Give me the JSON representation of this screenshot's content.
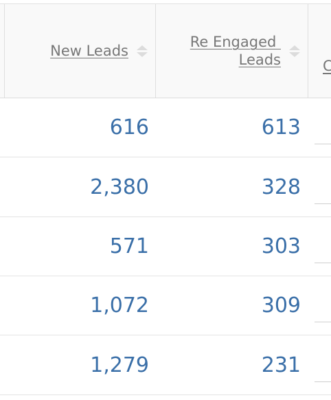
{
  "table": {
    "columns": [
      {
        "label": "New Leads"
      },
      {
        "label_line1": "Re Engaged ",
        "label_line2": "Leads"
      },
      {
        "label": "C"
      }
    ],
    "rows": [
      {
        "new_leads": "616",
        "re_engaged_leads": "613"
      },
      {
        "new_leads": "2,380",
        "re_engaged_leads": "328"
      },
      {
        "new_leads": "571",
        "re_engaged_leads": "303"
      },
      {
        "new_leads": "1,072",
        "re_engaged_leads": "309"
      },
      {
        "new_leads": "1,279",
        "re_engaged_leads": "231"
      }
    ]
  },
  "icons": {
    "sort": "sort-icon"
  },
  "colors": {
    "header_bg": "#f9f9f9",
    "header_text": "#777777",
    "value_text": "#3a6fa8",
    "border": "#e3e3e3",
    "sort_icon": "#dcdcdc"
  }
}
